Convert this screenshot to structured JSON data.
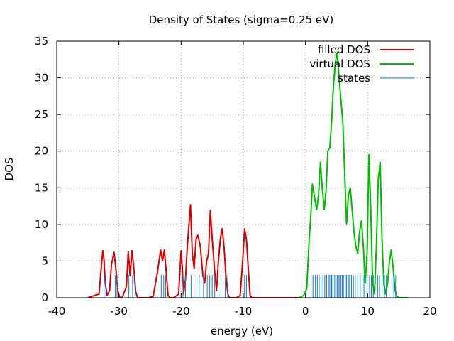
{
  "chart_data": {
    "type": "line",
    "title": "Density of States (sigma=0.25 eV)",
    "xlabel": "energy (eV)",
    "ylabel": "DOS",
    "xlim": [
      -40,
      20
    ],
    "ylim": [
      0,
      35
    ],
    "xticks": [
      -40,
      -30,
      -20,
      -10,
      0,
      10,
      20
    ],
    "yticks": [
      0,
      5,
      10,
      15,
      20,
      25,
      30,
      35
    ],
    "grid": true,
    "legend_position": "top-right",
    "series": [
      {
        "name": "filled DOS",
        "kind": "line",
        "color": "#dd0000",
        "x": [
          -35,
          -33.2,
          -32.9,
          -32.6,
          -32.4,
          -32.2,
          -31.9,
          -31.5,
          -31.2,
          -30.8,
          -30.5,
          -30.2,
          -29.9,
          -29.5,
          -28.8,
          -28.5,
          -28.2,
          -27.9,
          -27.6,
          -27.3,
          -27.0,
          -26.7,
          -26.3,
          -25.2,
          -24.5,
          -23.8,
          -23.3,
          -23.0,
          -22.7,
          -22.4,
          -22.1,
          -21.7,
          -21.2,
          -20.4,
          -20.0,
          -19.8,
          -19.6,
          -19.3,
          -19.0,
          -18.5,
          -18.2,
          -17.9,
          -17.6,
          -17.3,
          -16.9,
          -16.5,
          -16.2,
          -15.9,
          -15.6,
          -15.3,
          -15.0,
          -14.6,
          -14.3,
          -14.0,
          -13.7,
          -13.4,
          -13.1,
          -12.8,
          -12.5,
          -12.2,
          -11.9,
          -11.5,
          -11.1,
          -10.5,
          -10.1,
          -9.8,
          -9.5,
          -9.2,
          -8.9,
          -8.6,
          -8.0,
          -1.0
        ],
        "y": [
          0,
          0.5,
          3.5,
          6.4,
          5.2,
          2.0,
          0.3,
          1.0,
          4.5,
          6.2,
          4.0,
          1.0,
          0.1,
          0,
          1.5,
          6.3,
          3.0,
          6.4,
          4.0,
          0.8,
          0,
          0,
          0,
          0,
          0.2,
          3.5,
          6.5,
          5.0,
          6.5,
          3.5,
          0.3,
          0,
          0,
          0.5,
          6.4,
          4.0,
          0.5,
          2.5,
          7.0,
          12.7,
          6.0,
          4.0,
          8.0,
          8.5,
          7.0,
          3.0,
          2.0,
          5.0,
          6.0,
          11.9,
          8.0,
          3.5,
          1.0,
          5.0,
          8.0,
          9.4,
          7.0,
          3.0,
          0.5,
          0,
          0,
          0,
          0,
          0.3,
          5.0,
          9.4,
          8.0,
          4.0,
          0.3,
          0,
          0,
          0
        ]
      },
      {
        "name": "virtual DOS",
        "kind": "line",
        "color": "#00bb00",
        "x": [
          -1.0,
          -0.3,
          0.2,
          0.6,
          0.9,
          1.1,
          1.4,
          1.8,
          2.1,
          2.4,
          2.7,
          3.0,
          3.3,
          3.6,
          3.9,
          4.2,
          4.5,
          4.8,
          5.1,
          5.4,
          5.7,
          6.0,
          6.3,
          6.6,
          6.9,
          7.2,
          7.5,
          7.8,
          8.1,
          8.4,
          8.7,
          9.0,
          9.3,
          9.6,
          9.9,
          10.2,
          10.5,
          10.8,
          11.1,
          11.4,
          11.7,
          12.0,
          12.3,
          12.6,
          12.9,
          13.2,
          13.5,
          13.8,
          14.1,
          14.4,
          14.7,
          15.0,
          15.5,
          16.5
        ],
        "y": [
          0,
          0.3,
          1.2,
          8.0,
          12.0,
          15.5,
          14.0,
          12.0,
          14.0,
          18.5,
          15.0,
          12.0,
          14.5,
          20.0,
          20.5,
          24.0,
          29.0,
          32.0,
          33.5,
          30.0,
          27.0,
          24.0,
          17.0,
          10.0,
          14.0,
          15.0,
          12.0,
          9.0,
          7.0,
          6.0,
          9.0,
          10.5,
          7.0,
          2.0,
          6.0,
          19.5,
          12.0,
          2.0,
          0.5,
          7.0,
          16.0,
          18.5,
          8.0,
          2.0,
          0.5,
          2.0,
          5.0,
          6.5,
          4.0,
          1.0,
          0.2,
          0,
          0,
          0
        ]
      },
      {
        "name": "states",
        "kind": "impulse",
        "color": "#1f77c8",
        "height": 3.1,
        "x": [
          -32.4,
          -32.1,
          -30.6,
          -30.3,
          -28.4,
          -27.8,
          -27.4,
          -23.2,
          -22.8,
          -22.5,
          -19.7,
          -19.3,
          -18.4,
          -17.6,
          -17.1,
          -16.4,
          -15.8,
          -15.4,
          -15.0,
          -14.6,
          -13.6,
          -12.9,
          -12.5,
          -9.8,
          -9.5,
          0.9,
          1.2,
          1.6,
          1.9,
          2.2,
          2.5,
          2.8,
          3.1,
          3.4,
          3.7,
          3.9,
          4.2,
          4.4,
          4.7,
          4.9,
          5.1,
          5.3,
          5.5,
          5.7,
          5.9,
          6.1,
          6.4,
          6.6,
          6.9,
          7.1,
          7.4,
          7.7,
          8.0,
          8.4,
          8.8,
          9.1,
          9.4,
          9.9,
          10.3,
          10.6,
          10.9,
          11.6,
          11.9,
          12.3,
          12.7,
          13.0,
          13.9,
          14.2,
          14.5
        ]
      }
    ]
  }
}
